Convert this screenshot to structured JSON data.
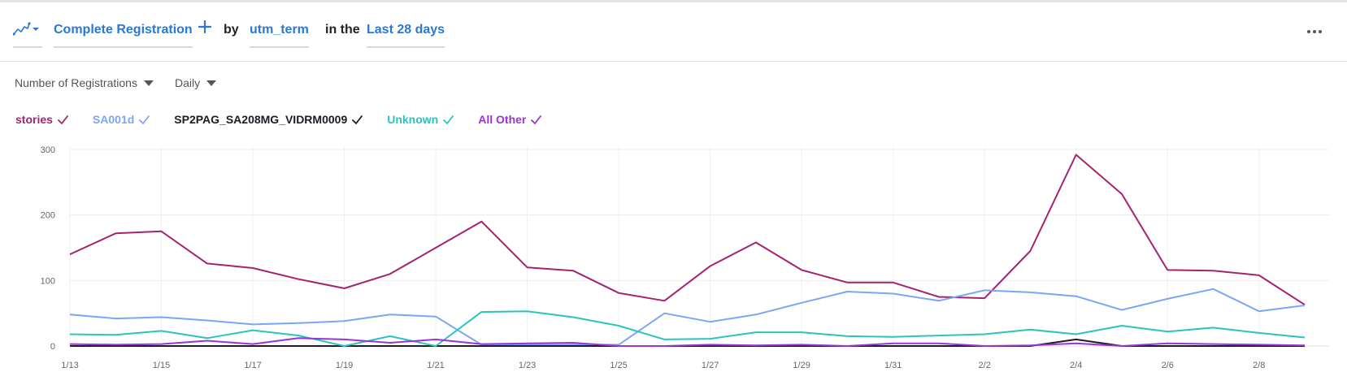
{
  "query": {
    "chart_icon": "line-chart-icon",
    "event": "Complete Registration",
    "by_label": "by",
    "property": "utm_term",
    "in_the_label": "in the",
    "range": "Last 28 days"
  },
  "controls": {
    "metric": "Number of Registrations",
    "interval": "Daily"
  },
  "chart_data": {
    "type": "line",
    "x": [
      "1/13",
      "1/14",
      "1/15",
      "1/16",
      "1/17",
      "1/18",
      "1/19",
      "1/20",
      "1/21",
      "1/22",
      "1/23",
      "1/24",
      "1/25",
      "1/26",
      "1/27",
      "1/28",
      "1/29",
      "1/30",
      "1/31",
      "2/1",
      "2/2",
      "2/3",
      "2/4",
      "2/5",
      "2/6",
      "2/7",
      "2/8",
      "2/9"
    ],
    "xticks": [
      "1/13",
      "1/15",
      "1/17",
      "1/19",
      "1/21",
      "1/23",
      "1/25",
      "1/27",
      "1/29",
      "1/31",
      "2/2",
      "2/4",
      "2/6",
      "2/8"
    ],
    "ylim": [
      0,
      300
    ],
    "yticks": [
      0,
      100,
      200,
      300
    ],
    "grid": true,
    "legend_position": "top-left",
    "series": [
      {
        "name": "stories",
        "color": "#a3236f",
        "values": [
          140,
          172,
          175,
          126,
          119,
          102,
          88,
          110,
          150,
          190,
          120,
          115,
          81,
          69,
          122,
          158,
          116,
          97,
          97,
          75,
          73,
          145,
          292,
          232,
          116,
          115,
          108,
          63
        ]
      },
      {
        "name": "SA001d",
        "color": "#7aa7f5",
        "values": [
          48,
          42,
          44,
          39,
          33,
          35,
          38,
          48,
          45,
          2,
          2,
          2,
          2,
          50,
          37,
          48,
          66,
          83,
          80,
          69,
          85,
          82,
          76,
          55,
          72,
          87,
          53,
          62
        ]
      },
      {
        "name": "SP2PAG_SA208MG_VIDRM0009",
        "color": "#1f1a24",
        "values": [
          0,
          0,
          0,
          0,
          0,
          0,
          0,
          0,
          0,
          0,
          0,
          0,
          0,
          0,
          0,
          0,
          0,
          0,
          0,
          0,
          0,
          0,
          10,
          0,
          0,
          0,
          0,
          0
        ]
      },
      {
        "name": "Unknown",
        "color": "#2bc4bd",
        "values": [
          18,
          17,
          23,
          12,
          24,
          16,
          0,
          15,
          0,
          52,
          53,
          44,
          31,
          10,
          11,
          21,
          21,
          15,
          14,
          16,
          18,
          25,
          18,
          31,
          22,
          28,
          20,
          13
        ]
      },
      {
        "name": "All Other",
        "color": "#9b33d6",
        "values": [
          3,
          2,
          3,
          8,
          3,
          12,
          10,
          5,
          10,
          3,
          4,
          5,
          0,
          0,
          2,
          1,
          2,
          0,
          4,
          4,
          0,
          1,
          4,
          0,
          4,
          3,
          2,
          1
        ]
      }
    ]
  }
}
